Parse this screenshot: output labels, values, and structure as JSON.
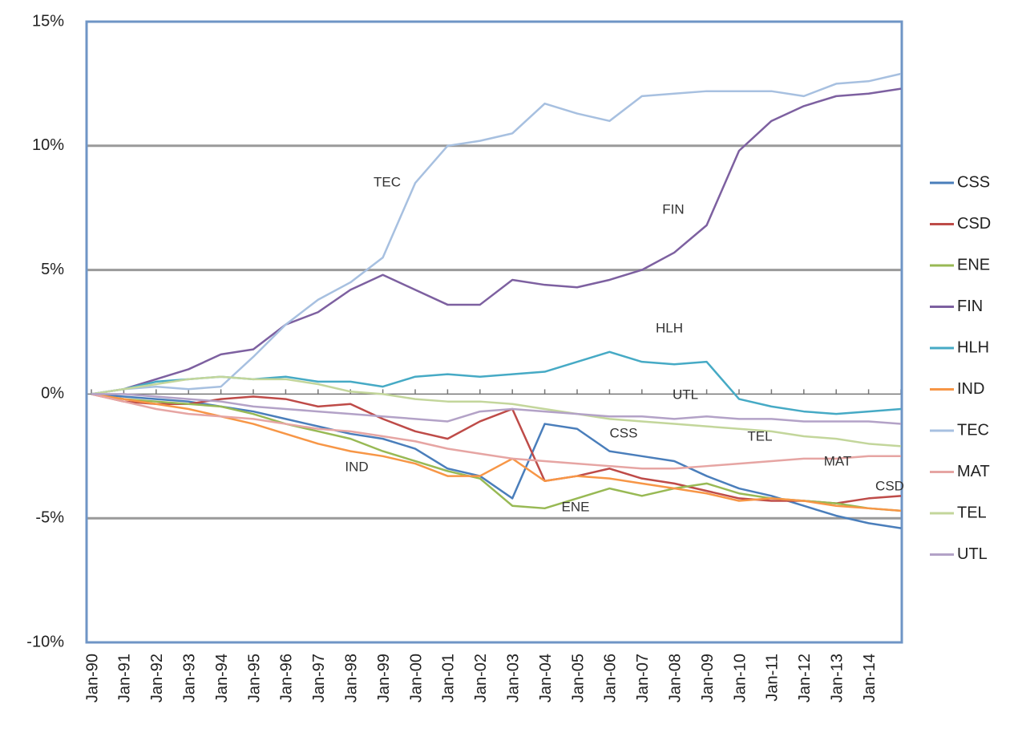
{
  "chart_data": {
    "type": "line",
    "categories": [
      "Jan-90",
      "Jan-91",
      "Jan-92",
      "Jan-93",
      "Jan-94",
      "Jan-95",
      "Jan-96",
      "Jan-97",
      "Jan-98",
      "Jan-99",
      "Jan-00",
      "Jan-01",
      "Jan-02",
      "Jan-03",
      "Jan-04",
      "Jan-05",
      "Jan-06",
      "Jan-07",
      "Jan-08",
      "Jan-09",
      "Jan-10",
      "Jan-11",
      "Jan-12",
      "Jan-13",
      "Jan-14",
      null
    ],
    "ylim": [
      -10,
      15
    ],
    "yticks": [
      {
        "value": -10,
        "label": "-10%"
      },
      {
        "value": -5,
        "label": "-5%"
      },
      {
        "value": 0,
        "label": "0%"
      },
      {
        "value": 5,
        "label": "5%"
      },
      {
        "value": 10,
        "label": "10%"
      },
      {
        "value": 15,
        "label": "15%"
      }
    ],
    "grid": true,
    "legend": "right",
    "series": [
      {
        "name": "CSS",
        "color": "#4a7ebb",
        "values": [
          0,
          -0.1,
          -0.2,
          -0.3,
          -0.5,
          -0.7,
          -1.0,
          -1.3,
          -1.6,
          -1.8,
          -2.2,
          -3.0,
          -3.3,
          -4.2,
          -1.2,
          -1.4,
          -2.3,
          -2.5,
          -2.7,
          -3.3,
          -3.8,
          -4.1,
          -4.5,
          -4.9,
          -5.2,
          -5.4
        ]
      },
      {
        "name": "CSD",
        "color": "#be4b48",
        "values": [
          0,
          -0.3,
          -0.4,
          -0.4,
          -0.2,
          -0.1,
          -0.2,
          -0.5,
          -0.4,
          -1.0,
          -1.5,
          -1.8,
          -1.1,
          -0.6,
          -3.5,
          -3.3,
          -3.0,
          -3.4,
          -3.6,
          -3.9,
          -4.2,
          -4.3,
          -4.3,
          -4.4,
          -4.2,
          -4.1
        ]
      },
      {
        "name": "ENE",
        "color": "#98b954",
        "values": [
          0,
          -0.2,
          -0.3,
          -0.4,
          -0.5,
          -0.8,
          -1.2,
          -1.5,
          -1.8,
          -2.3,
          -2.7,
          -3.1,
          -3.4,
          -4.5,
          -4.6,
          -4.2,
          -3.8,
          -4.1,
          -3.8,
          -3.6,
          -4.0,
          -4.2,
          -4.3,
          -4.4,
          -4.6,
          -4.7
        ]
      },
      {
        "name": "FIN",
        "color": "#7d60a0",
        "values": [
          0,
          0.2,
          0.6,
          1.0,
          1.6,
          1.8,
          2.8,
          3.3,
          4.2,
          4.8,
          4.2,
          3.6,
          3.6,
          4.6,
          4.4,
          4.3,
          4.6,
          5.0,
          5.7,
          6.8,
          9.8,
          11.0,
          11.6,
          12.0,
          12.1,
          12.3
        ]
      },
      {
        "name": "HLH",
        "color": "#46aac5",
        "values": [
          0,
          0.2,
          0.5,
          0.6,
          0.7,
          0.6,
          0.7,
          0.5,
          0.5,
          0.3,
          0.7,
          0.8,
          0.7,
          0.8,
          0.9,
          1.3,
          1.7,
          1.3,
          1.2,
          1.3,
          -0.2,
          -0.5,
          -0.7,
          -0.8,
          -0.7,
          -0.6
        ]
      },
      {
        "name": "IND",
        "color": "#f79646",
        "values": [
          0,
          -0.2,
          -0.4,
          -0.6,
          -0.9,
          -1.2,
          -1.6,
          -2.0,
          -2.3,
          -2.5,
          -2.8,
          -3.3,
          -3.3,
          -2.6,
          -3.5,
          -3.3,
          -3.4,
          -3.6,
          -3.8,
          -4.0,
          -4.3,
          -4.2,
          -4.3,
          -4.5,
          -4.6,
          -4.7
        ]
      },
      {
        "name": "TEC",
        "color": "#a7c0e0",
        "values": [
          0,
          0.2,
          0.3,
          0.2,
          0.3,
          1.5,
          2.8,
          3.8,
          4.5,
          5.5,
          8.5,
          10.0,
          10.2,
          10.5,
          11.7,
          11.3,
          11.0,
          12.0,
          12.1,
          12.2,
          12.2,
          12.2,
          12.0,
          12.5,
          12.6,
          12.9
        ]
      },
      {
        "name": "MAT",
        "color": "#e6a5a3",
        "values": [
          0,
          -0.3,
          -0.6,
          -0.8,
          -0.9,
          -1.0,
          -1.2,
          -1.4,
          -1.5,
          -1.7,
          -1.9,
          -2.2,
          -2.4,
          -2.6,
          -2.7,
          -2.8,
          -2.9,
          -3.0,
          -3.0,
          -2.9,
          -2.8,
          -2.7,
          -2.6,
          -2.6,
          -2.5,
          -2.5
        ]
      },
      {
        "name": "TEL",
        "color": "#c3d69b",
        "values": [
          0,
          0.2,
          0.4,
          0.6,
          0.7,
          0.6,
          0.6,
          0.4,
          0.1,
          0,
          -0.2,
          -0.3,
          -0.3,
          -0.4,
          -0.6,
          -0.8,
          -1.0,
          -1.1,
          -1.2,
          -1.3,
          -1.4,
          -1.5,
          -1.7,
          -1.8,
          -2.0,
          -2.1
        ]
      },
      {
        "name": "UTL",
        "color": "#b3a2c7",
        "values": [
          0,
          0,
          -0.1,
          -0.2,
          -0.3,
          -0.5,
          -0.6,
          -0.7,
          -0.8,
          -0.9,
          -1.0,
          -1.1,
          -0.7,
          -0.6,
          -0.7,
          -0.8,
          -0.9,
          -0.9,
          -1.0,
          -0.9,
          -1.0,
          -1.0,
          -1.1,
          -1.1,
          -1.1,
          -1.2
        ]
      }
    ],
    "annotations": [
      "TEC",
      "FIN",
      "HLH",
      "UTL",
      "CSS",
      "TEL",
      "MAT",
      "IND",
      "ENE",
      "CSD"
    ]
  }
}
